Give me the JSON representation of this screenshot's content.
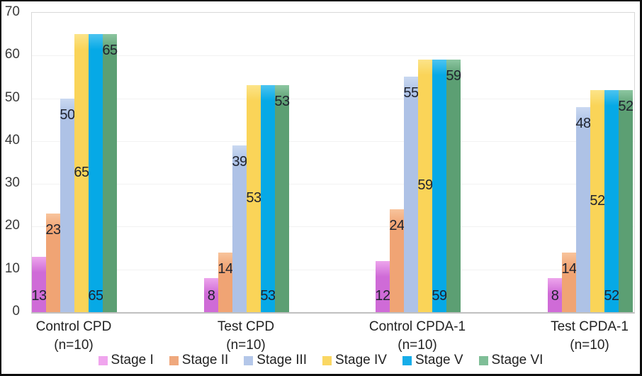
{
  "chart_data": {
    "type": "bar",
    "title": "",
    "xlabel": "",
    "ylabel": "",
    "categories": [
      "Control CPD",
      "Test CPD",
      "Control CPDA-1",
      "Test CPDA-1"
    ],
    "category_sublabel": "(n=10)",
    "series": [
      {
        "name": "Stage I",
        "values": [
          13,
          8,
          12,
          8
        ],
        "color_main": "#cf6bd7",
        "color_light": "#eda5ec",
        "legend_color": "#f0a5ee",
        "label_position": "inside-base"
      },
      {
        "name": "Stage II",
        "values": [
          23,
          14,
          24,
          14
        ],
        "color_main": "#f0a474",
        "color_light": "#f8c49c",
        "legend_color": "#efa87d",
        "label_position": "inside-end"
      },
      {
        "name": "Stage III",
        "values": [
          50,
          39,
          55,
          48
        ],
        "color_main": "#aec2e6",
        "color_light": "#cad9f1",
        "legend_color": "#b4c7e9",
        "label_position": "inside-end"
      },
      {
        "name": "Stage IV",
        "values": [
          65,
          53,
          59,
          52
        ],
        "color_main": "#fad458",
        "color_light": "#fce489",
        "legend_color": "#fad763",
        "label_position": "center"
      },
      {
        "name": "Stage V",
        "values": [
          65,
          53,
          59,
          52
        ],
        "color_main": "#06a9e6",
        "color_light": "#4cc4f0",
        "legend_color": "#16ade9",
        "label_position": "inside-base"
      },
      {
        "name": "Stage VI",
        "values": [
          65,
          53,
          59,
          52
        ],
        "color_main": "#5c9f73",
        "color_light": "#8cc6a0",
        "legend_color": "#7fbe97",
        "label_position": "inside-end"
      }
    ],
    "ylim": [
      0,
      70
    ],
    "yticks": [
      0,
      10,
      20,
      30,
      40,
      50,
      60,
      70
    ],
    "grid": "horizontal-faint",
    "legend_position": "bottom"
  },
  "theme": {
    "background": "#ffffff",
    "frame_border": "#0d0d0d",
    "plot_border": "#d8d8d8",
    "axis_line": "#c0c0c0",
    "grid_color": "#f2f2f2",
    "tick_color": "#3a3a3a",
    "data_label_color": "#20242f",
    "category_label_color": "#222222"
  }
}
